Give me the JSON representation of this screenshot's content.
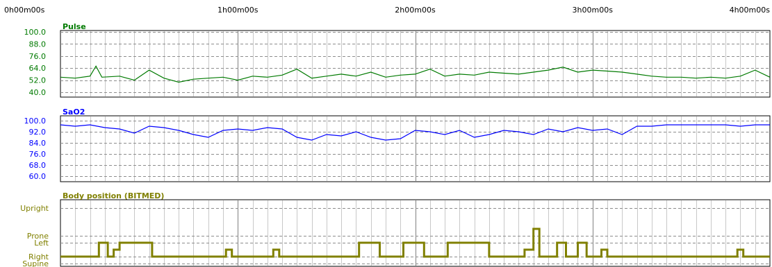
{
  "time_axis": {
    "labels": [
      "0h00m00s",
      "1h00m00s",
      "2h00m00s",
      "3h00m00s",
      "4h00m00s"
    ],
    "total_minutes": 240
  },
  "chart_data": [
    {
      "type": "line",
      "title": "Pulse",
      "color": "#007a00",
      "ylim": [
        40,
        100
      ],
      "yticks": [
        "100.0",
        "88.0",
        "76.0",
        "64.0",
        "52.0",
        "40.0"
      ],
      "ytick_values": [
        100,
        88,
        76,
        64,
        52,
        40
      ],
      "series": [
        {
          "x": [
            0,
            5,
            10,
            12,
            14,
            20,
            25,
            30,
            35,
            40,
            45,
            50,
            55,
            60,
            65,
            70,
            75,
            80,
            85,
            90,
            95,
            100,
            105,
            110,
            115,
            120,
            125,
            130,
            135,
            140,
            145,
            150,
            155,
            160,
            165,
            170,
            175,
            180,
            185,
            190,
            195,
            200,
            205,
            210,
            215,
            220,
            225,
            230,
            235,
            240
          ],
          "values": [
            55,
            54,
            56,
            66,
            55,
            56,
            52,
            62,
            54,
            50,
            53,
            54,
            55,
            52,
            56,
            55,
            57,
            63,
            54,
            56,
            58,
            56,
            60,
            55,
            57,
            58,
            63,
            56,
            58,
            57,
            60,
            59,
            58,
            60,
            62,
            65,
            60,
            62,
            61,
            60,
            58,
            56,
            55,
            55,
            54,
            55,
            54,
            56,
            62,
            55
          ]
        }
      ]
    },
    {
      "type": "line",
      "title": "SaO2",
      "color": "#0000ff",
      "ylim": [
        60,
        100
      ],
      "yticks": [
        "100.0",
        "92.0",
        "84.0",
        "76.0",
        "68.0",
        "60.0"
      ],
      "ytick_values": [
        100,
        92,
        84,
        76,
        68,
        60
      ],
      "series": [
        {
          "x": [
            0,
            5,
            10,
            15,
            20,
            25,
            30,
            35,
            40,
            45,
            50,
            55,
            60,
            65,
            70,
            75,
            80,
            85,
            90,
            95,
            100,
            105,
            110,
            115,
            120,
            125,
            130,
            135,
            140,
            145,
            150,
            155,
            160,
            165,
            170,
            175,
            180,
            185,
            190,
            195,
            200,
            205,
            210,
            215,
            220,
            225,
            230,
            235,
            240
          ],
          "values": [
            97,
            96,
            97,
            95,
            94,
            91,
            96,
            95,
            93,
            90,
            88,
            93,
            94,
            93,
            95,
            94,
            88,
            86,
            90,
            89,
            92,
            88,
            86,
            87,
            93,
            92,
            90,
            93,
            88,
            90,
            93,
            92,
            90,
            94,
            92,
            95,
            93,
            94,
            90,
            96,
            96,
            97,
            97,
            97,
            97,
            97,
            96,
            97,
            97
          ]
        }
      ]
    },
    {
      "type": "line",
      "title": "Body position (BITMED)",
      "color": "#808000",
      "ylim": [
        0,
        4
      ],
      "yticks": [
        "Upright",
        "Prone",
        "Left",
        "Right",
        "Supine"
      ],
      "ytick_values": [
        4,
        2,
        1.5,
        0.5,
        0
      ],
      "series": [
        {
          "x": [
            0,
            13,
            13,
            16,
            16,
            18,
            18,
            20,
            20,
            31,
            31,
            56,
            56,
            58,
            58,
            72,
            72,
            74,
            74,
            101,
            101,
            108,
            108,
            116,
            116,
            123,
            123,
            131,
            131,
            145,
            145,
            157,
            157,
            160,
            160,
            162,
            162,
            168,
            168,
            171,
            171,
            175,
            175,
            178,
            178,
            183,
            183,
            185,
            185,
            229,
            229,
            231,
            231,
            240
          ],
          "values": [
            0.5,
            0.5,
            1.5,
            1.5,
            0.5,
            0.5,
            1,
            1,
            1.5,
            1.5,
            0.5,
            0.5,
            1,
            1,
            0.5,
            0.5,
            1,
            1,
            0.5,
            0.5,
            1.5,
            1.5,
            0.5,
            0.5,
            1.5,
            1.5,
            0.5,
            0.5,
            1.5,
            1.5,
            0.5,
            0.5,
            1,
            1,
            2.5,
            2.5,
            0.5,
            0.5,
            1.5,
            1.5,
            0.5,
            0.5,
            1.5,
            1.5,
            0.5,
            0.5,
            1,
            1,
            0.5,
            0.5,
            1,
            1,
            0.5,
            0.5
          ]
        }
      ]
    }
  ]
}
